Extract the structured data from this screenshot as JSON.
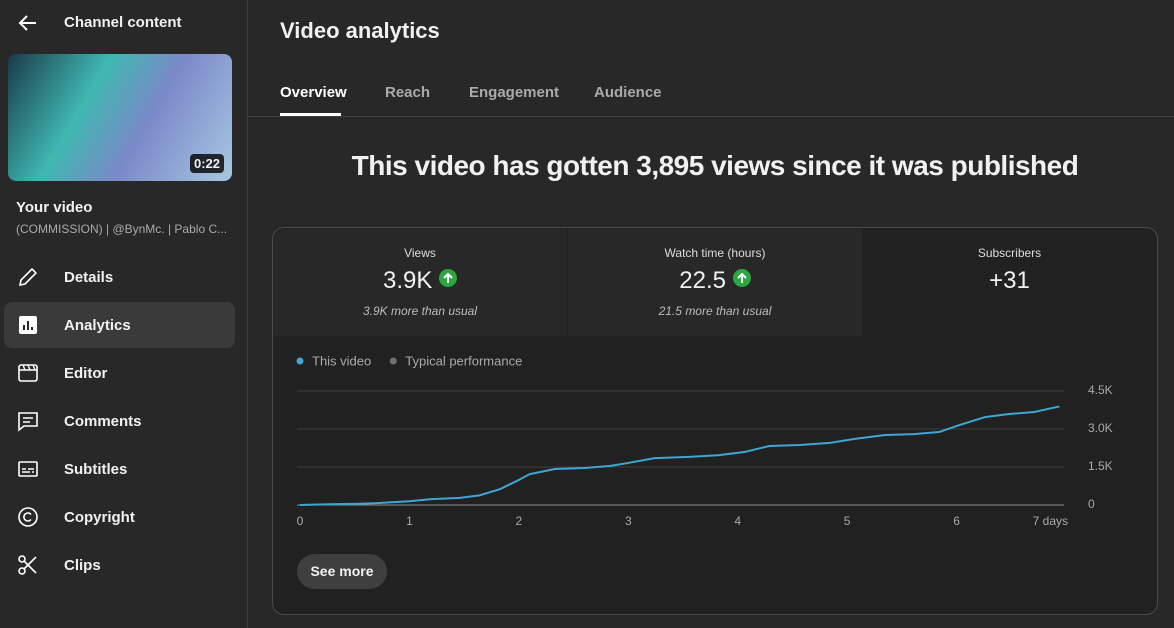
{
  "sidebar": {
    "title": "Channel content",
    "thumbnail_duration": "0:22",
    "video_label": "Your video",
    "video_title": "(COMMISSION) | @BynMc. | Pablo C...",
    "nav": [
      "Details",
      "Analytics",
      "Editor",
      "Comments",
      "Subtitles",
      "Copyright",
      "Clips"
    ]
  },
  "header": {
    "title": "Video analytics"
  },
  "tabs": [
    "Overview",
    "Reach",
    "Engagement",
    "Audience"
  ],
  "headline": "This video has gotten 3,895 views since it was published",
  "metrics": [
    {
      "label": "Views",
      "value": "3.9K",
      "note": "3.9K more than usual"
    },
    {
      "label": "Watch time (hours)",
      "value": "22.5",
      "note": "21.5 more than usual"
    },
    {
      "label": "Subscribers",
      "value": "+31"
    }
  ],
  "see_more": "See more",
  "chart_data": {
    "type": "line",
    "x": [
      0,
      0.27,
      0.55,
      0.73,
      1,
      1.2,
      1.46,
      1.64,
      1.83,
      2,
      2.1,
      2.33,
      2.6,
      2.83,
      3,
      3.24,
      3.56,
      3.83,
      4.06,
      4.29,
      4.57,
      4.84,
      5.07,
      5.34,
      5.61,
      5.84,
      6.03,
      6.26,
      6.48,
      6.71,
      6.94
    ],
    "series": [
      {
        "name": "This video",
        "color": "#3ea6d2",
        "values": [
          0,
          30,
          50,
          80,
          150,
          230,
          280,
          380,
          630,
          990,
          1220,
          1420,
          1460,
          1540,
          1660,
          1850,
          1900,
          1970,
          2090,
          2330,
          2370,
          2450,
          2610,
          2760,
          2800,
          2880,
          3160,
          3470,
          3590,
          3670,
          3890
        ]
      },
      {
        "name": "Typical performance",
        "color": "#717171",
        "values": [
          null,
          null,
          null,
          null,
          null,
          null,
          null,
          null,
          null,
          null,
          null,
          null,
          null,
          null,
          null,
          null,
          null,
          null,
          null,
          null,
          null,
          null,
          null,
          null,
          null,
          null,
          null,
          null,
          null,
          null,
          null
        ]
      }
    ],
    "xlim": [
      0,
      7
    ],
    "xticks": [
      0,
      1,
      2,
      3,
      4,
      5,
      6,
      {
        "value": 7,
        "label": "7 days"
      }
    ],
    "ylim": [
      0,
      4500
    ],
    "yticks": [
      0,
      {
        "value": 1500,
        "label": "1.5K"
      },
      {
        "value": 3000,
        "label": "3.0K"
      },
      {
        "value": 4500,
        "label": "4.5K"
      }
    ],
    "grid": true
  }
}
